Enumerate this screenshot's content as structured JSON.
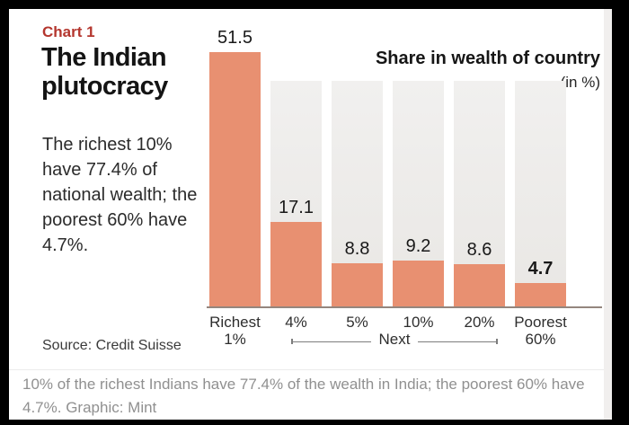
{
  "panel": {
    "kicker": "Chart 1",
    "kicker_color": "#b4362e",
    "headline": "The Indian plutocracy",
    "summary": "The richest 10% have 77.4% of national wealth; the poorest 60% have 4.7%.",
    "source": "Source: Credit Suisse"
  },
  "chart_data": {
    "type": "bar",
    "title": "Share in wealth of country",
    "unit_label": "(in %)",
    "categories": [
      "Richest 1%",
      "4%",
      "5%",
      "10%",
      "20%",
      "Poorest 60%"
    ],
    "tick_lines": [
      [
        "Richest",
        "1%"
      ],
      [
        "4%"
      ],
      [
        "5%"
      ],
      [
        "10%"
      ],
      [
        "20%"
      ],
      [
        "Poorest",
        "60%"
      ]
    ],
    "values": [
      51.5,
      17.1,
      8.8,
      9.2,
      8.6,
      4.7
    ],
    "value_labels": [
      "51.5",
      "17.1",
      "8.8",
      "9.2",
      "8.6",
      "4.7"
    ],
    "bold_value_labels": [
      false,
      false,
      false,
      false,
      false,
      true
    ],
    "group_bracket": {
      "label": "Next",
      "from_index": 1,
      "to_index": 4
    },
    "legend": "none",
    "grid": false,
    "bar_color": "#e89071",
    "track_color": "#edebe9",
    "axis_line_color": "#94867e"
  },
  "caption": {
    "text": "10% of the richest Indians have 77.4% of the wealth in India; the poorest 60% have 4.7%. Graphic: Mint",
    "text_color": "#909090"
  }
}
